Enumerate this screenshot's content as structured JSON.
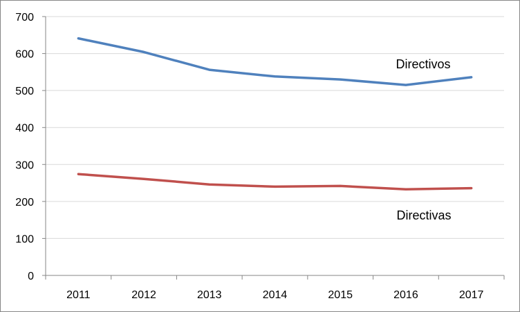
{
  "chart_data": {
    "type": "line",
    "title": "",
    "xlabel": "",
    "ylabel": "",
    "categories": [
      "2011",
      "2012",
      "2013",
      "2014",
      "2015",
      "2016",
      "2017"
    ],
    "ylim": [
      0,
      700
    ],
    "yticks": [
      0,
      100,
      200,
      300,
      400,
      500,
      600,
      700
    ],
    "grid": true,
    "legend": "none",
    "series": [
      {
        "name": "Directivos",
        "color": "#4f81bd",
        "values": [
          641,
          604,
          556,
          538,
          530,
          515,
          536
        ]
      },
      {
        "name": "Directivas",
        "color": "#c0504d",
        "values": [
          274,
          261,
          246,
          240,
          242,
          233,
          236
        ]
      }
    ]
  }
}
